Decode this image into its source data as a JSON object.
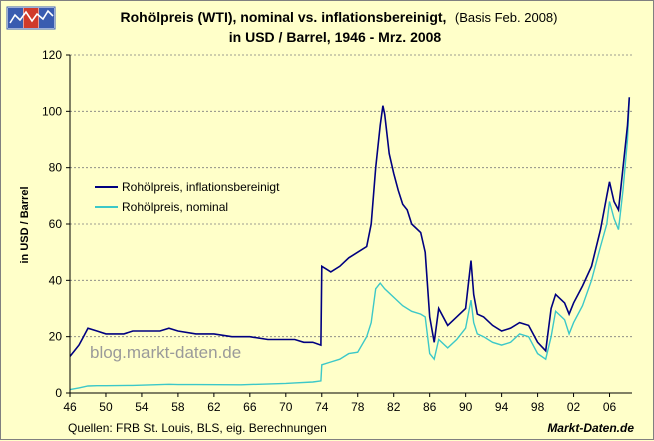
{
  "colors": {
    "background": "#ffffc9",
    "real_line": "#000080",
    "nominal_line": "#3cc8c8",
    "grid": "#7f7f7f",
    "logo_blue": "#3a5cb0",
    "logo_red": "#d03a2a"
  },
  "logo": {
    "icon": "market-data-chart-logo-icon"
  },
  "chart_data": {
    "type": "line",
    "title_bold": "Rohölpreis (WTI), nominal vs. inflationsbereinigt,",
    "title_light": "(Basis Feb. 2008)",
    "subtitle": "in USD / Barrel, 1946 - Mrz. 2008",
    "xlabel": "",
    "ylabel": "in USD / Barrel",
    "xlim": [
      1946,
      2008.5
    ],
    "ylim": [
      0,
      120
    ],
    "y_ticks": [
      0,
      20,
      40,
      60,
      80,
      100,
      120
    ],
    "x_ticks": [
      1946,
      1950,
      1954,
      1958,
      1962,
      1966,
      1970,
      1974,
      1978,
      1982,
      1986,
      1990,
      1994,
      1998,
      2002,
      2006
    ],
    "x_tick_labels": [
      "46",
      "50",
      "54",
      "58",
      "62",
      "66",
      "70",
      "74",
      "78",
      "82",
      "86",
      "90",
      "94",
      "98",
      "02",
      "06"
    ],
    "grid": "horizontal dashed",
    "legend_position": "upper-left",
    "series": [
      {
        "name": "Rohölpreis, inflationsbereinigt",
        "x": [
          1946,
          1946.5,
          1947,
          1947.5,
          1948,
          1949,
          1950,
          1951,
          1952,
          1953,
          1954,
          1956,
          1957,
          1958,
          1960,
          1962,
          1964,
          1966,
          1968,
          1970,
          1971,
          1972,
          1973,
          1973.9,
          1974,
          1974.5,
          1975,
          1976,
          1977,
          1978,
          1979,
          1979.5,
          1980,
          1980.5,
          1980.8,
          1981,
          1981.5,
          1982,
          1982.5,
          1983,
          1983.5,
          1984,
          1985,
          1985.5,
          1986,
          1986.5,
          1987,
          1988,
          1989,
          1990,
          1990.6,
          1990.9,
          1991.3,
          1992,
          1993,
          1994,
          1995,
          1996,
          1997,
          1998,
          1998.9,
          1999.5,
          2000,
          2001,
          2001.5,
          2002,
          2003,
          2004,
          2005,
          2005.7,
          2006,
          2006.5,
          2007,
          2007.5,
          2008,
          2008.2
        ],
        "y": [
          13,
          15,
          17,
          20,
          23,
          22,
          21,
          21,
          21,
          22,
          22,
          22,
          23,
          22,
          21,
          21,
          20,
          20,
          19,
          19,
          19,
          18,
          18,
          17,
          45,
          44,
          43,
          45,
          48,
          50,
          52,
          60,
          80,
          95,
          102,
          99,
          85,
          78,
          72,
          67,
          65,
          60,
          57,
          50,
          27,
          18,
          30,
          24,
          27,
          30,
          47,
          35,
          28,
          27,
          24,
          22,
          23,
          25,
          24,
          18,
          15,
          30,
          35,
          32,
          28,
          32,
          38,
          45,
          58,
          70,
          75,
          68,
          65,
          80,
          95,
          105
        ]
      },
      {
        "name": "Rohölpreis, nominal",
        "x": [
          1946,
          1947,
          1948,
          1949,
          1950,
          1953,
          1957,
          1958,
          1960,
          1965,
          1970,
          1971,
          1973,
          1973.9,
          1974,
          1975,
          1976,
          1977,
          1978,
          1979,
          1979.5,
          1980,
          1980.5,
          1981,
          1982,
          1983,
          1984,
          1985,
          1985.5,
          1986,
          1986.5,
          1987,
          1988,
          1989,
          1990,
          1990.6,
          1990.9,
          1991.3,
          1992,
          1993,
          1994,
          1995,
          1996,
          1997,
          1998,
          1998.9,
          1999.5,
          2000,
          2001,
          2001.5,
          2002,
          2003,
          2004,
          2005,
          2005.7,
          2006,
          2006.5,
          2007,
          2007.5,
          2008,
          2008.2
        ],
        "y": [
          1.2,
          1.8,
          2.5,
          2.6,
          2.6,
          2.7,
          3.1,
          3.0,
          3.0,
          2.9,
          3.4,
          3.6,
          3.9,
          4.3,
          10,
          11,
          12,
          14,
          14.5,
          20,
          25,
          37,
          39,
          37,
          34,
          31,
          29,
          28,
          27,
          14,
          12,
          19,
          16,
          19,
          23,
          33,
          25,
          21,
          20,
          18,
          17,
          18,
          21,
          20,
          14,
          12,
          20,
          29,
          26,
          21,
          25,
          31,
          40,
          52,
          60,
          68,
          62,
          58,
          72,
          90,
          105
        ]
      }
    ]
  },
  "watermark": "blog.markt-daten.de",
  "source_text": "Quellen: FRB St. Louis, BLS, eig. Berechnungen",
  "brand_text": "Markt-Daten.de"
}
